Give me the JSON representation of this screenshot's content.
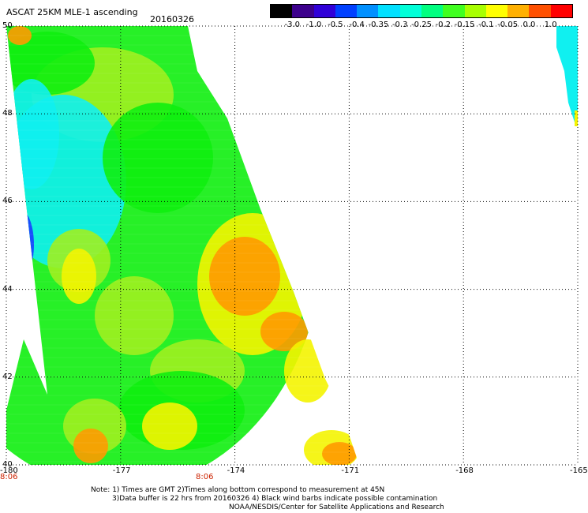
{
  "header": {
    "title": "ASCAT 25KM MLE-1 ascending",
    "date": "20160326"
  },
  "colorbar": {
    "labels": [
      "-3.0",
      "-1.0",
      "-0.5",
      "-0.4",
      "-0.35",
      "-0.3",
      "-0.25",
      "-0.2",
      "-0.15",
      "-0.1",
      "-0.05",
      "0.0",
      "1.0"
    ],
    "colors": [
      "#000000",
      "#3c008c",
      "#3000d8",
      "#0040ff",
      "#0090ff",
      "#00e0ff",
      "#00ffd8",
      "#00ff80",
      "#40ff20",
      "#a8ff00",
      "#ffff00",
      "#ffb000",
      "#ff5000",
      "#ff0000"
    ]
  },
  "map": {
    "lon_range": [
      -180,
      -165
    ],
    "lat_range": [
      40,
      50
    ],
    "x_tick_labels": [
      "-180",
      "-177",
      "-174",
      "-171",
      "-168",
      "-165"
    ],
    "y_tick_labels": [
      "50",
      "48",
      "46",
      "44",
      "42",
      "40"
    ],
    "time_labels": [
      "8:06",
      "8:06"
    ],
    "time_color": "#cc2200",
    "palette": {
      "blue": "#1a3cff",
      "cyan": "#10f0f0",
      "green": "#10ee10",
      "lightgreen": "#a0f020",
      "yellow": "#f4f400",
      "orange": "#ff9a00"
    }
  },
  "notes": {
    "line1": "Note: 1) Times are GMT 2)Times along bottom correspond to measurement at 45N",
    "line2": "3)Data buffer is 22 hrs from 20160326 4) Black wind barbs indicate possible contamination",
    "line3": "NOAA/NESDIS/Center for Satellite Applications and Research"
  }
}
